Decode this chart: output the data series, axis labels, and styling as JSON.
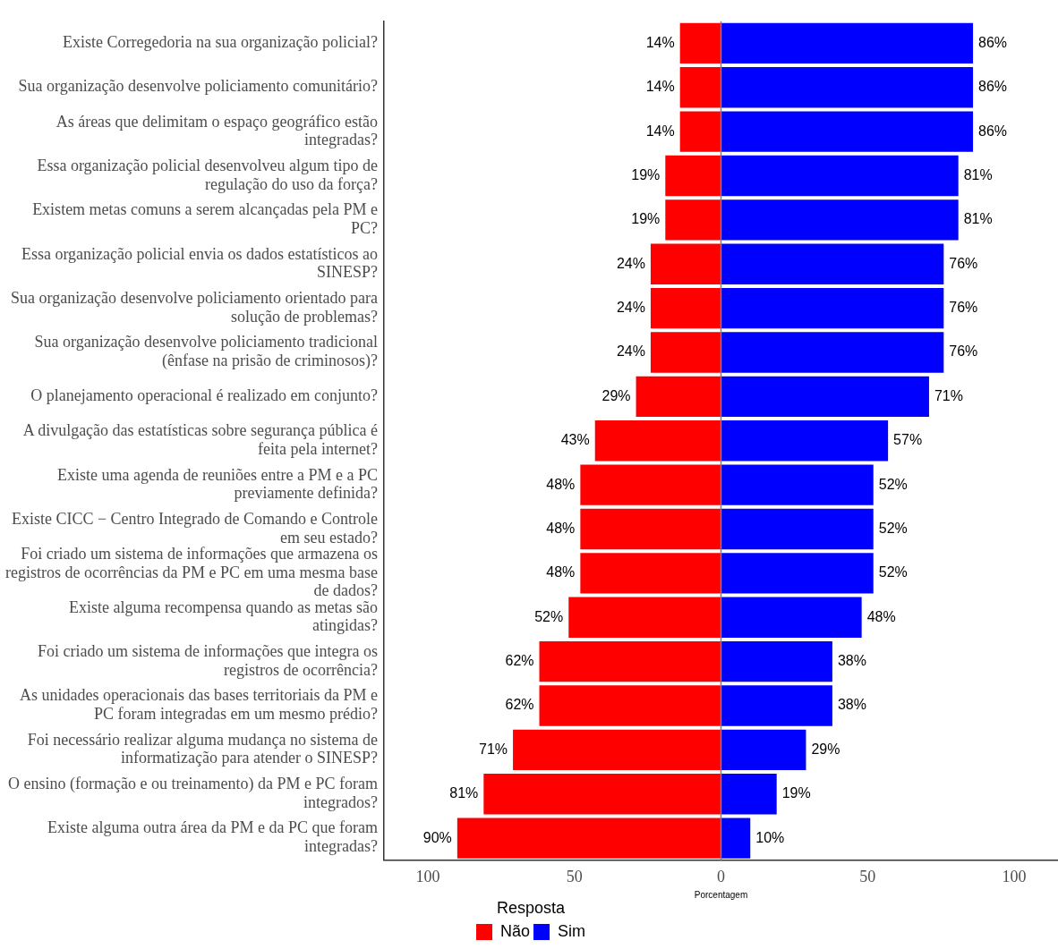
{
  "chart_data": {
    "type": "bar",
    "orientation": "horizontal",
    "xlabel": "Porcentagem",
    "legend_title": "Resposta",
    "legend": "bottom",
    "grid": false,
    "categories": [
      "Existe Corregedoria na sua organização policial?",
      "Sua organização desenvolve policiamento comunitário?",
      "As áreas que delimitam o espaço geográfico estão integradas?",
      "Essa organização policial desenvolveu algum tipo de regulação do uso da força?",
      "Existem metas comuns a serem alcançadas pela PM e PC?",
      "Essa organização policial envia os dados estatísticos ao SINESP?",
      "Sua organização desenvolve policiamento orientado para solução de problemas?",
      "Sua organização desenvolve policiamento tradicional (ênfase na prisão de criminosos)?",
      "O planejamento operacional é realizado em conjunto?",
      "A divulgação das estatísticas sobre segurança pública é feita pela internet?",
      "Existe uma agenda de reuniões entre a PM e a PC previamente definida?",
      "Existe CICC − Centro Integrado de Comando e Controle em seu estado?",
      "Foi criado um sistema de informações que armazena os registros de ocorrências da PM e PC em uma mesma base de dados?",
      "Existe alguma recompensa quando as metas são atingidas?",
      "Foi criado um sistema de informações que integra os registros de ocorrência?",
      "As unidades operacionais das bases territoriais da PM e PC foram integradas em um mesmo prédio?",
      "Foi necessário realizar alguma mudança no sistema de informatização para atender o SINESP?",
      "O ensino (formação e ou treinamento) da PM e PC foram integrados?",
      "Existe alguma outra área da PM e da PC que foram integradas?"
    ],
    "series": [
      {
        "name": "Não",
        "color": "#ff0000",
        "values": [
          14,
          14,
          14,
          19,
          19,
          24,
          24,
          24,
          29,
          43,
          48,
          48,
          48,
          52,
          62,
          62,
          71,
          81,
          90
        ],
        "base": [
          -14,
          -14,
          -14,
          -19,
          -19,
          -24,
          -24,
          -24,
          -29,
          -43,
          -48,
          -48,
          -48,
          -52,
          -62,
          -62,
          -71,
          -81,
          -90
        ],
        "value_labels": [
          "14%",
          "14%",
          "14%",
          "19%",
          "19%",
          "24%",
          "24%",
          "24%",
          "29%",
          "43%",
          "48%",
          "48%",
          "48%",
          "52%",
          "62%",
          "62%",
          "71%",
          "81%",
          "90%"
        ]
      },
      {
        "name": "Sim",
        "color": "#0000ff",
        "values": [
          86,
          86,
          86,
          81,
          81,
          76,
          76,
          76,
          71,
          57,
          52,
          52,
          52,
          48,
          38,
          38,
          29,
          19,
          10
        ],
        "value_labels": [
          "86%",
          "86%",
          "86%",
          "81%",
          "81%",
          "76%",
          "76%",
          "76%",
          "71%",
          "57%",
          "52%",
          "52%",
          "52%",
          "48%",
          "38%",
          "38%",
          "29%",
          "19%",
          "10%"
        ]
      }
    ],
    "xlim": [
      -115,
      115
    ],
    "xticks": [
      {
        "value": -100,
        "label": "100"
      },
      {
        "value": -50,
        "label": "50"
      },
      0,
      50,
      100
    ],
    "ref_lines": [
      {
        "axis": "x",
        "value": 0,
        "color": "#808080"
      }
    ]
  }
}
